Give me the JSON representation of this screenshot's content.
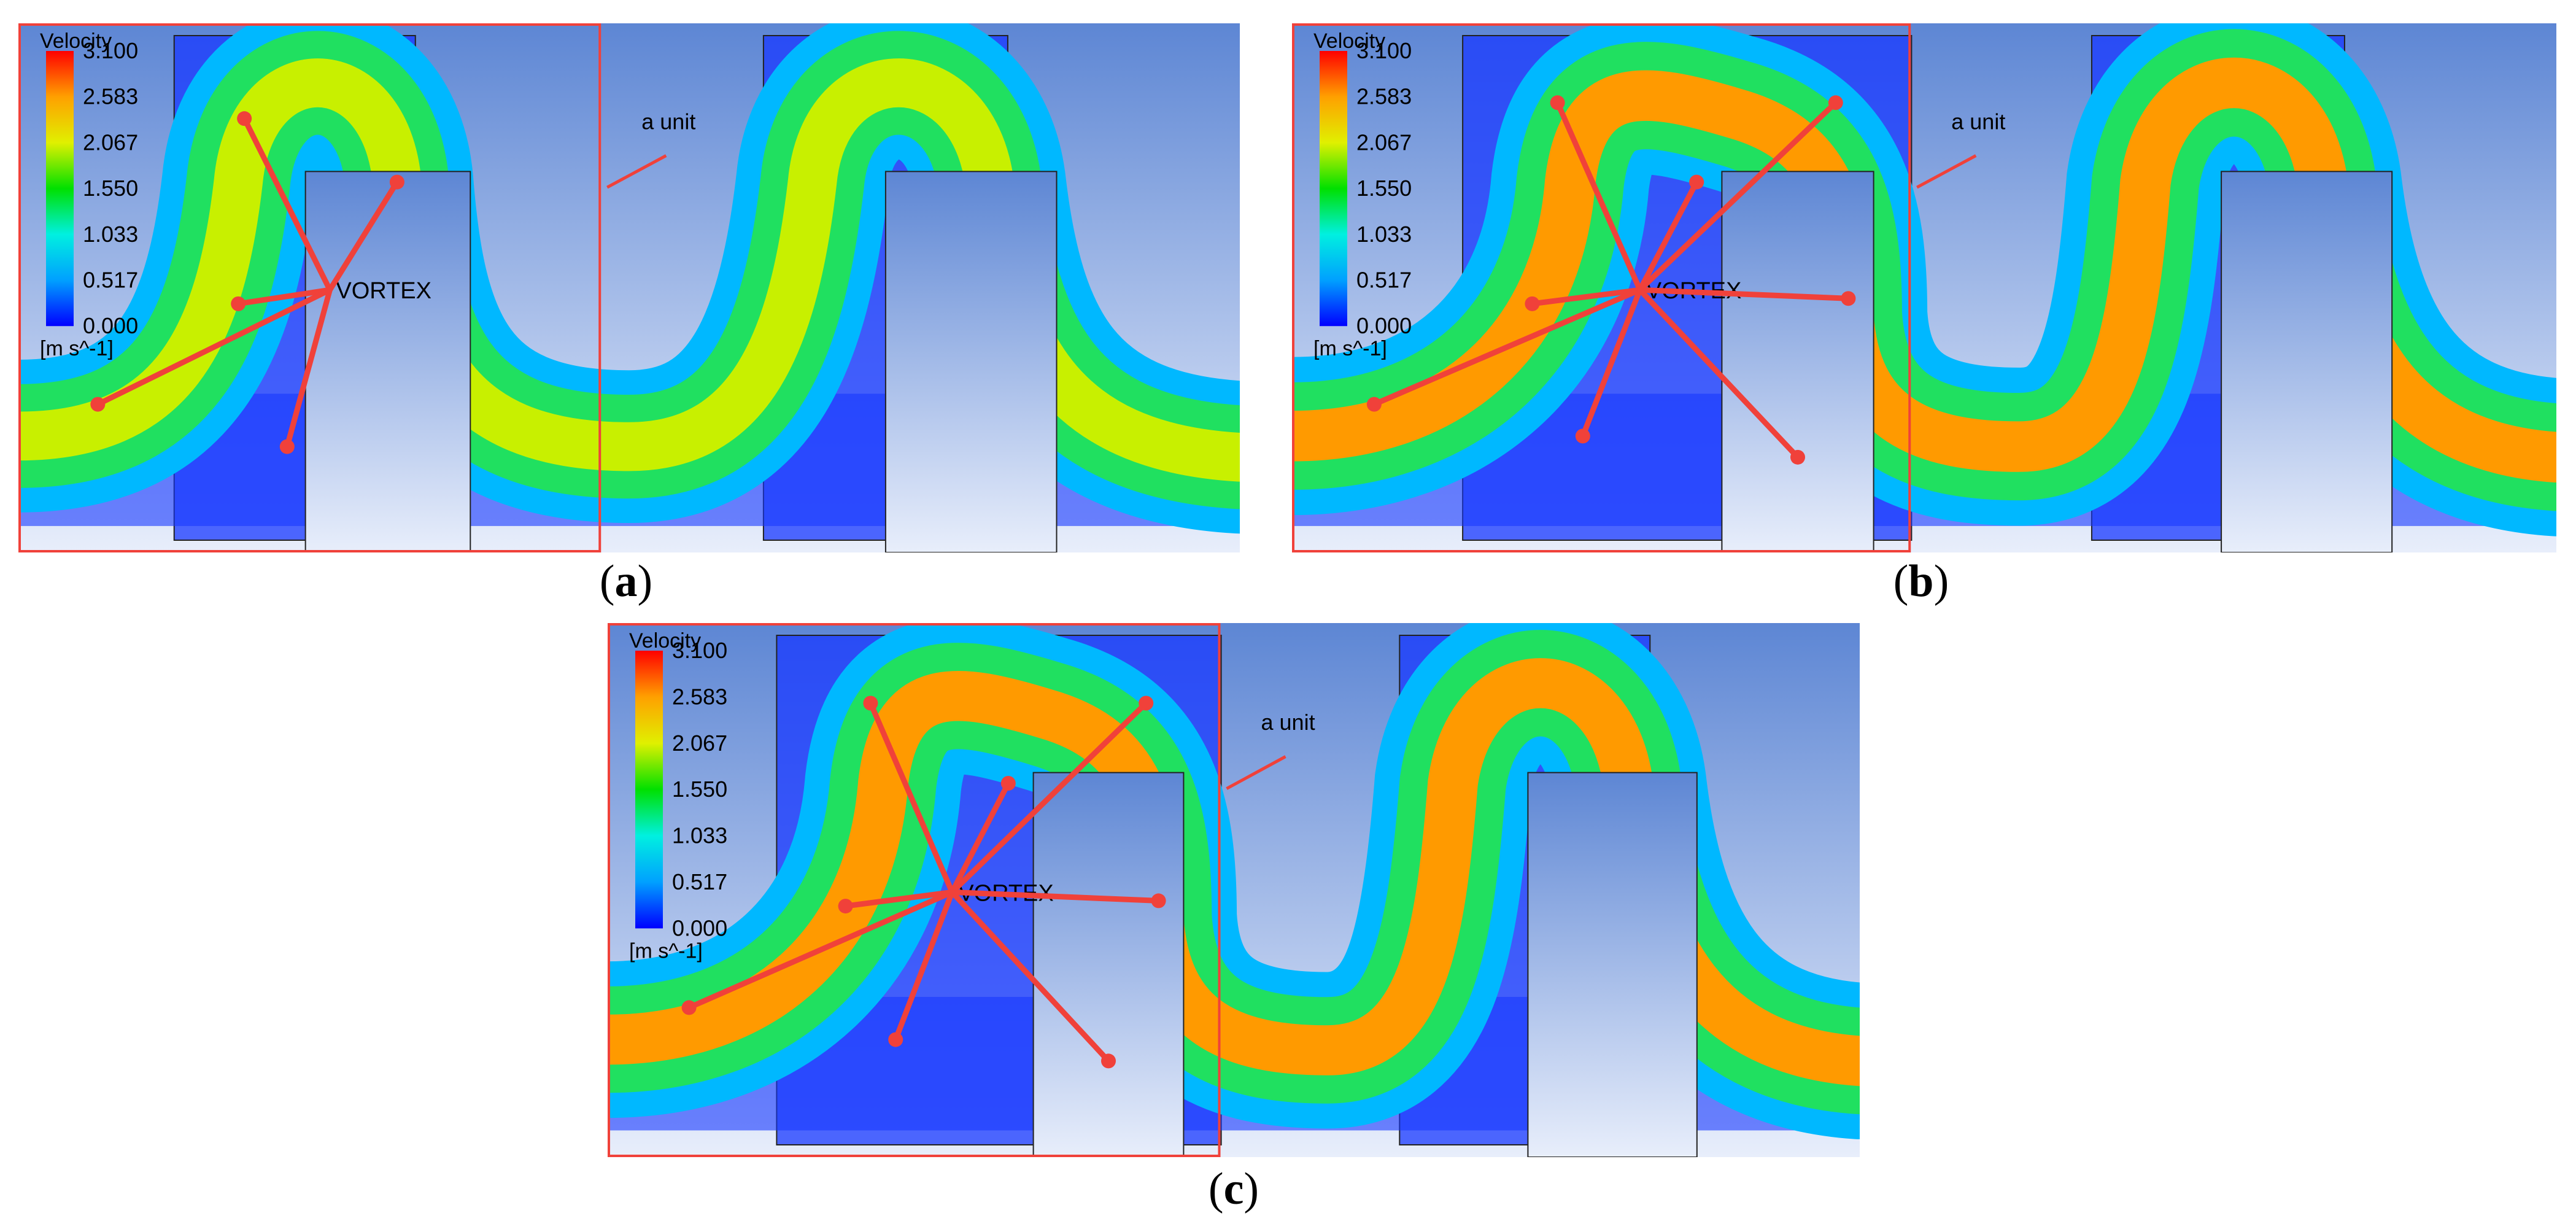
{
  "figure": {
    "panels": [
      {
        "id": "a",
        "caption_open": "(",
        "caption_letter": "a",
        "caption_close": ")",
        "legend": {
          "title": "Velocity",
          "ticks": [
            "3.100",
            "2.583",
            "2.067",
            "1.550",
            "1.033",
            "0.517",
            "0.000"
          ],
          "unit": "[m s^-1]"
        },
        "vortex_label": "VORTEX",
        "unit_label": "a unit"
      },
      {
        "id": "b",
        "caption_open": "(",
        "caption_letter": "b",
        "caption_close": ")",
        "legend": {
          "title": "Velocity",
          "ticks": [
            "3.100",
            "2.583",
            "2.067",
            "1.550",
            "1.033",
            "0.517",
            "0.000"
          ],
          "unit": "[m s^-1]"
        },
        "vortex_label": "VORTEX",
        "unit_label": "a unit"
      },
      {
        "id": "c",
        "caption_open": "(",
        "caption_letter": "c",
        "caption_close": ")",
        "legend": {
          "title": "Velocity",
          "ticks": [
            "3.100",
            "2.583",
            "2.067",
            "1.550",
            "1.033",
            "0.517",
            "0.000"
          ],
          "unit": "[m s^-1]"
        },
        "vortex_label": "VORTEX",
        "unit_label": "a unit"
      }
    ],
    "colors": {
      "background_top": "#5d86d4",
      "background_bottom": "#e8eefb",
      "annotation_red": "#f0413a",
      "colormap": [
        "#0000ff",
        "#00a0ff",
        "#00f0e0",
        "#00e000",
        "#e0f000",
        "#ffa000",
        "#ff0000"
      ]
    }
  }
}
